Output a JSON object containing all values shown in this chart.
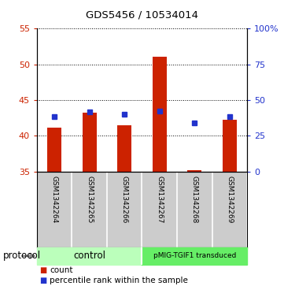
{
  "title": "GDS5456 / 10534014",
  "samples": [
    "GSM1342264",
    "GSM1342265",
    "GSM1342266",
    "GSM1342267",
    "GSM1342268",
    "GSM1342269"
  ],
  "red_values": [
    41.1,
    43.2,
    41.5,
    51.1,
    35.2,
    42.2
  ],
  "blue_values": [
    42.7,
    43.3,
    43.0,
    43.5,
    41.8,
    42.7
  ],
  "ylim_left": [
    35,
    55
  ],
  "ylim_right": [
    0,
    100
  ],
  "yticks_left": [
    35,
    40,
    45,
    50,
    55
  ],
  "yticks_right": [
    0,
    25,
    50,
    75,
    100
  ],
  "ytick_labels_right": [
    "0",
    "25",
    "50",
    "75",
    "100%"
  ],
  "bar_bottom": 35,
  "bar_color": "#cc2200",
  "blue_color": "#2233cc",
  "protocol_color_control": "#bbffbb",
  "protocol_color_pmig": "#66ee66",
  "sample_bg_color": "#cccccc",
  "legend_red_label": "count",
  "legend_blue_label": "percentile rank within the sample",
  "protocol_text": "protocol",
  "axis_color_red": "#cc2200",
  "axis_color_blue": "#2233cc",
  "bar_width": 0.4,
  "blue_marker_size": 5
}
